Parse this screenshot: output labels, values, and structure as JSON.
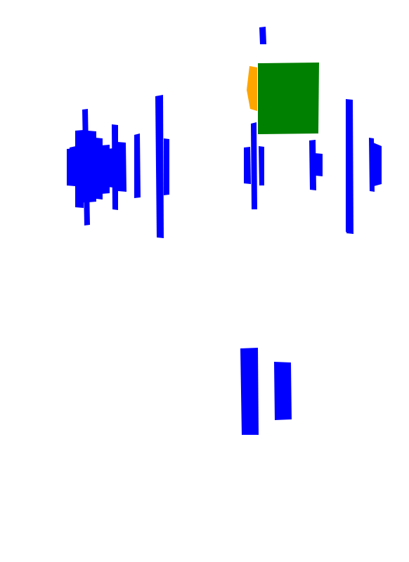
{
  "colors": {
    "background": "#ffffff",
    "blue": "#0000ff",
    "green": "#008000",
    "orange": "#ffa500"
  },
  "shapes": [
    {
      "name": "blue-bar-1",
      "fill": "blue"
    },
    {
      "name": "blue-bar-2",
      "fill": "blue"
    },
    {
      "name": "blue-bar-3",
      "fill": "blue"
    },
    {
      "name": "blue-bar-4",
      "fill": "blue"
    },
    {
      "name": "blue-bar-5",
      "fill": "blue"
    },
    {
      "name": "blue-bar-6",
      "fill": "blue"
    },
    {
      "name": "blue-bar-7",
      "fill": "blue"
    },
    {
      "name": "blue-bar-8",
      "fill": "blue"
    },
    {
      "name": "blue-bar-9",
      "fill": "blue"
    },
    {
      "name": "blue-bar-10",
      "fill": "blue"
    },
    {
      "name": "blue-bar-11",
      "fill": "blue"
    },
    {
      "name": "blue-bar-12",
      "fill": "blue"
    },
    {
      "name": "blue-bar-13",
      "fill": "blue"
    },
    {
      "name": "blue-bar-14",
      "fill": "blue"
    },
    {
      "name": "blue-bar-15",
      "fill": "blue"
    },
    {
      "name": "blue-bar-16",
      "fill": "blue"
    },
    {
      "name": "blue-bar-17",
      "fill": "blue"
    },
    {
      "name": "blue-bar-18",
      "fill": "blue"
    },
    {
      "name": "blue-bar-19",
      "fill": "blue"
    },
    {
      "name": "blue-bar-20",
      "fill": "blue"
    },
    {
      "name": "blue-bar-21",
      "fill": "blue"
    },
    {
      "name": "blue-bar-22",
      "fill": "blue"
    },
    {
      "name": "blue-bar-23",
      "fill": "blue"
    },
    {
      "name": "blue-bar-24",
      "fill": "blue"
    },
    {
      "name": "blue-bar-25",
      "fill": "blue"
    },
    {
      "name": "blue-bar-26",
      "fill": "blue"
    },
    {
      "name": "blue-bar-27",
      "fill": "blue"
    },
    {
      "name": "orange-blob",
      "fill": "orange"
    },
    {
      "name": "green-square",
      "fill": "green"
    }
  ]
}
